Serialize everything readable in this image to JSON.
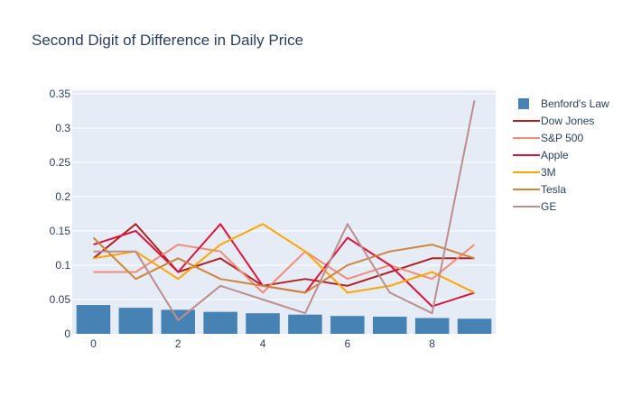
{
  "chart_data": {
    "type": "bar+line",
    "title": "Second Digit of Difference in Daily Price",
    "xlabel": "",
    "ylabel": "",
    "x": [
      0,
      1,
      2,
      3,
      4,
      5,
      6,
      7,
      8,
      9
    ],
    "x_ticks": [
      "0",
      "2",
      "4",
      "6",
      "8"
    ],
    "y_ticks": [
      "0",
      "0.05",
      "0.1",
      "0.15",
      "0.2",
      "0.25",
      "0.3",
      "0.35"
    ],
    "xlim": [
      -0.5,
      9.5
    ],
    "ylim": [
      0,
      0.355
    ],
    "grid": true,
    "legend_position": "right",
    "bars": {
      "name": "Benford's Law",
      "color": "#4682b4",
      "values": [
        0.042,
        0.038,
        0.035,
        0.032,
        0.03,
        0.028,
        0.026,
        0.025,
        0.023,
        0.022
      ]
    },
    "series": [
      {
        "name": "Dow Jones",
        "color": "#b22222",
        "values": [
          0.11,
          0.16,
          0.09,
          0.11,
          0.07,
          0.08,
          0.07,
          0.09,
          0.11,
          0.11
        ]
      },
      {
        "name": "S&P 500",
        "color": "#f08c78",
        "values": [
          0.09,
          0.09,
          0.13,
          0.12,
          0.06,
          0.12,
          0.08,
          0.1,
          0.08,
          0.13
        ]
      },
      {
        "name": "Apple",
        "color": "#dc143c",
        "values": [
          0.13,
          0.15,
          0.09,
          0.16,
          0.07,
          0.06,
          0.14,
          0.1,
          0.04,
          0.06
        ]
      },
      {
        "name": "3M",
        "color": "#ffa500",
        "values": [
          0.11,
          0.12,
          0.08,
          0.13,
          0.16,
          0.12,
          0.06,
          0.07,
          0.09,
          0.06
        ]
      },
      {
        "name": "Tesla",
        "color": "#cd853f",
        "values": [
          0.14,
          0.08,
          0.11,
          0.08,
          0.07,
          0.06,
          0.1,
          0.12,
          0.13,
          0.11
        ]
      },
      {
        "name": "GE",
        "color": "#bc8f8f",
        "values": [
          0.12,
          0.12,
          0.02,
          0.07,
          0.05,
          0.03,
          0.16,
          0.06,
          0.03,
          0.34
        ]
      }
    ]
  }
}
